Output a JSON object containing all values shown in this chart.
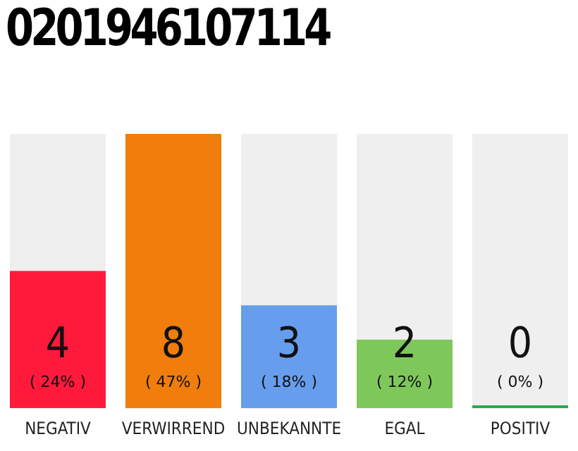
{
  "chart_data": {
    "type": "bar",
    "title": "0201946107114",
    "categories": [
      "NEGATIV",
      "VERWIRREND",
      "UNBEKANNTE",
      "EGAL",
      "POSITIV"
    ],
    "values": [
      4,
      8,
      3,
      2,
      0
    ],
    "colors": [
      "#ff1a3c",
      "#f07d0c",
      "#679ded",
      "#7ec85b",
      "#22aa44"
    ],
    "ylim": [
      0,
      8
    ],
    "data_labels": true,
    "grid": false,
    "legend": false,
    "tick_labels": "x",
    "annotations": [
      "( 24% )",
      "( 47% )",
      "( 18% )",
      "( 12% )",
      "( 0% )"
    ]
  }
}
